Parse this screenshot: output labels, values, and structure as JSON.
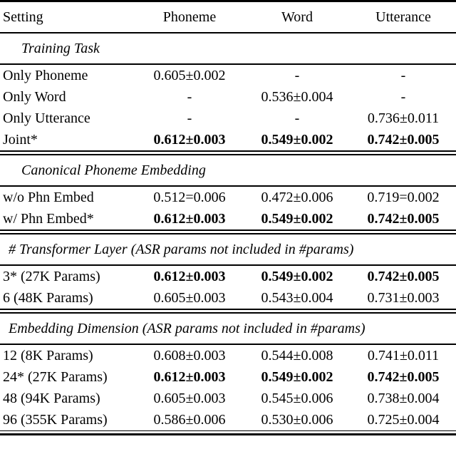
{
  "table": {
    "columns": {
      "setting": "Setting",
      "phoneme": "Phoneme",
      "word": "Word",
      "utterance": "Utterance"
    },
    "sections": [
      {
        "header": "Training Task",
        "rows": [
          {
            "setting": "Only Phoneme",
            "phoneme": "0.605±0.002",
            "word": "-",
            "utterance": "-",
            "bold_values": false
          },
          {
            "setting": "Only Word",
            "phoneme": "-",
            "word": "0.536±0.004",
            "utterance": "-",
            "bold_values": false
          },
          {
            "setting": "Only Utterance",
            "phoneme": "-",
            "word": "-",
            "utterance": "0.736±0.011",
            "bold_values": false
          },
          {
            "setting": "Joint*",
            "phoneme": "0.612±0.003",
            "word": "0.549±0.002",
            "utterance": "0.742±0.005",
            "bold_values": true
          }
        ]
      },
      {
        "header": "Canonical Phoneme Embedding",
        "rows": [
          {
            "setting": "w/o Phn Embed",
            "phoneme": "0.512=0.006",
            "word": "0.472±0.006",
            "utterance": "0.719=0.002",
            "bold_values": false
          },
          {
            "setting": "w/ Phn Embed*",
            "phoneme": "0.612±0.003",
            "word": "0.549±0.002",
            "utterance": "0.742±0.005",
            "bold_values": true
          }
        ]
      },
      {
        "header": "# Transformer Layer (ASR params not included in #params)",
        "rows": [
          {
            "setting": "3* (27K Params)",
            "phoneme": "0.612±0.003",
            "word": "0.549±0.002",
            "utterance": "0.742±0.005",
            "bold_values": true
          },
          {
            "setting": "6 (48K Params)",
            "phoneme": "0.605±0.003",
            "word": "0.543±0.004",
            "utterance": "0.731±0.003",
            "bold_values": false
          }
        ]
      },
      {
        "header": "Embedding Dimension (ASR params not included in #params)",
        "rows": [
          {
            "setting": "12 (8K Params)",
            "phoneme": "0.608±0.003",
            "word": "0.544±0.008",
            "utterance": "0.741±0.011",
            "bold_values": false
          },
          {
            "setting": "24* (27K Params)",
            "phoneme": "0.612±0.003",
            "word": "0.549±0.002",
            "utterance": "0.742±0.005",
            "bold_values": true
          },
          {
            "setting": "48 (94K Params)",
            "phoneme": "0.605±0.003",
            "word": "0.545±0.006",
            "utterance": "0.738±0.004",
            "bold_values": false
          },
          {
            "setting": "96 (355K Params)",
            "phoneme": "0.586±0.006",
            "word": "0.530±0.006",
            "utterance": "0.725±0.004",
            "bold_values": false
          }
        ]
      }
    ]
  }
}
